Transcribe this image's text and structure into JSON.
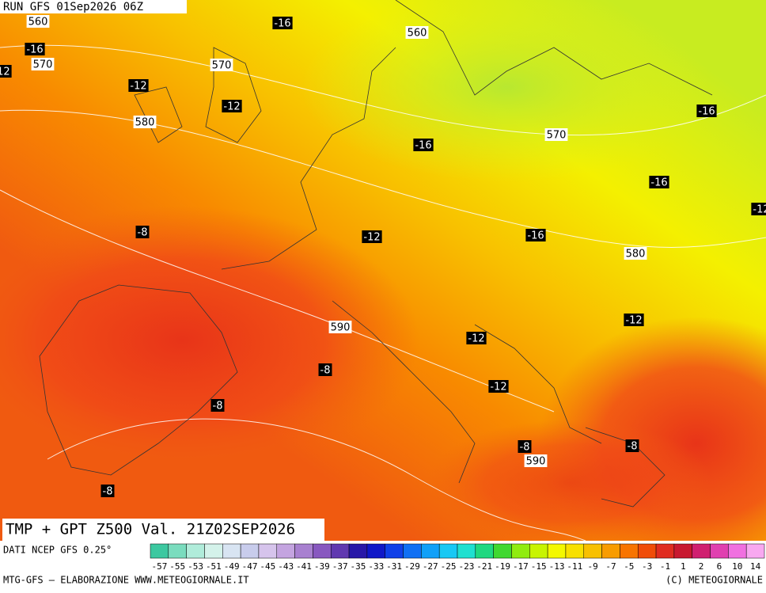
{
  "header": {
    "run": "RUN GFS 01Sep2026 06Z"
  },
  "map_title": "TMP + GPT Z500 Val. 21Z02SEP2026",
  "contour_labels": [
    "560",
    "-16",
    "560",
    "-16",
    "570",
    "-12",
    "570",
    "-12",
    "-12",
    "580",
    "-16",
    "570",
    "-16",
    "-16",
    "-12",
    "-8",
    "-12",
    "-16",
    "580",
    "590",
    "-12",
    "-12",
    "-8",
    "-12",
    "-8",
    "-8",
    "-8",
    "590",
    "-8"
  ],
  "colorbar": {
    "source": "DATI NCEP GFS 0.25°",
    "labels": [
      "-57",
      "-55",
      "-53",
      "-51",
      "-49",
      "-47",
      "-45",
      "-43",
      "-41",
      "-39",
      "-37",
      "-35",
      "-33",
      "-31",
      "-29",
      "-27",
      "-25",
      "-23",
      "-21",
      "-19",
      "-17",
      "-15",
      "-13",
      "-11",
      "-9",
      "-7",
      "-5",
      "-3",
      "-1",
      "1",
      "2",
      "6",
      "10",
      "14"
    ],
    "colors": [
      "#3cc8a0",
      "#7adcbe",
      "#b0ecda",
      "#d4f2ea",
      "#d8e4f2",
      "#c8ccec",
      "#d6c4ec",
      "#c4a4e0",
      "#a880d0",
      "#8858c0",
      "#6038b0",
      "#2818a8",
      "#1018c8",
      "#1040e8",
      "#1070f4",
      "#10a0f8",
      "#18c8f4",
      "#20e0d0",
      "#20d880",
      "#40d830",
      "#90ec10",
      "#c8f400",
      "#f4f800",
      "#f8e000",
      "#f8c000",
      "#f89c00",
      "#f87400",
      "#f04c08",
      "#e02c20",
      "#c81830",
      "#d02070",
      "#e040b0",
      "#f070e0",
      "#f8a8f0"
    ]
  },
  "footer": {
    "left": "MTG-GFS – ELABORAZIONE WWW.METEOGIORNALE.IT",
    "right": "(C) METEOGIORNALE"
  }
}
